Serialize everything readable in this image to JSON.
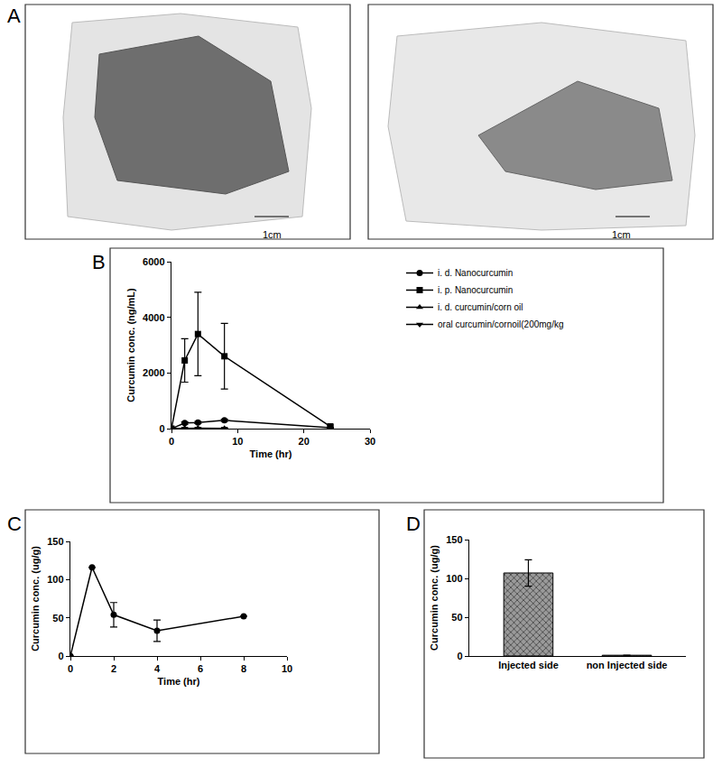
{
  "panel_a": {
    "label": "A",
    "scale_bars": [
      "1cm",
      "1cm"
    ]
  },
  "chart_data": [
    {
      "label": "B",
      "type": "line",
      "x_label": "Time (hr)",
      "y_label": "Curcumin conc. (ng/mL)",
      "xlim": [
        0,
        30
      ],
      "xticks": [
        0,
        10,
        20,
        30
      ],
      "ylim": [
        0,
        6000
      ],
      "yticks": [
        0,
        2000,
        4000,
        6000
      ],
      "legend": "upper right",
      "series": [
        {
          "name": "i. d. Nanocurcumin",
          "marker": "circle",
          "color": "#000000",
          "x": [
            0,
            2,
            4,
            8,
            24
          ],
          "values": [
            0,
            200,
            220,
            300,
            30
          ],
          "errors": [
            null,
            40,
            40,
            40,
            20
          ]
        },
        {
          "name": "i. p. Nanocurcumin",
          "marker": "square",
          "color": "#000000",
          "x": [
            0,
            2,
            4,
            8,
            24
          ],
          "values": [
            0,
            2450,
            3400,
            2600,
            80
          ],
          "errors": [
            null,
            780,
            1500,
            1180,
            50
          ]
        },
        {
          "name": "i. d. curcumin/corn oil",
          "marker": "triangle-up",
          "color": "#000000",
          "x": [
            0,
            2,
            4,
            8
          ],
          "values": [
            0,
            20,
            20,
            10
          ],
          "errors": [
            null,
            null,
            null,
            null
          ]
        },
        {
          "name": "oral curcumin/cornoil(200mg/kg",
          "marker": "triangle-down",
          "color": "#000000",
          "x": [
            0,
            2,
            4,
            8
          ],
          "values": [
            0,
            10,
            10,
            10
          ],
          "errors": [
            null,
            null,
            null,
            null
          ]
        }
      ]
    },
    {
      "label": "C",
      "type": "line",
      "x_label": "Time (hr)",
      "y_label": "Curcumin conc. (ug/g)",
      "xlim": [
        0,
        10
      ],
      "xticks": [
        0,
        2,
        4,
        6,
        8,
        10
      ],
      "ylim": [
        0,
        150
      ],
      "yticks": [
        0,
        50,
        100,
        150
      ],
      "x": [
        0,
        1,
        2,
        4,
        8
      ],
      "values": [
        0,
        116,
        54,
        33,
        52
      ],
      "errors": [
        null,
        null,
        16,
        14,
        null
      ],
      "marker": "circle",
      "color": "#000000"
    },
    {
      "label": "D",
      "type": "bar",
      "y_label": "Curcumin conc. (ug/g)",
      "categories": [
        "Injected side",
        "non Injected side"
      ],
      "values": [
        107,
        1
      ],
      "errors": [
        17,
        null
      ],
      "color": "#9a9a9a",
      "ylim": [
        0,
        150
      ],
      "yticks": [
        0,
        50,
        100,
        150
      ]
    }
  ]
}
